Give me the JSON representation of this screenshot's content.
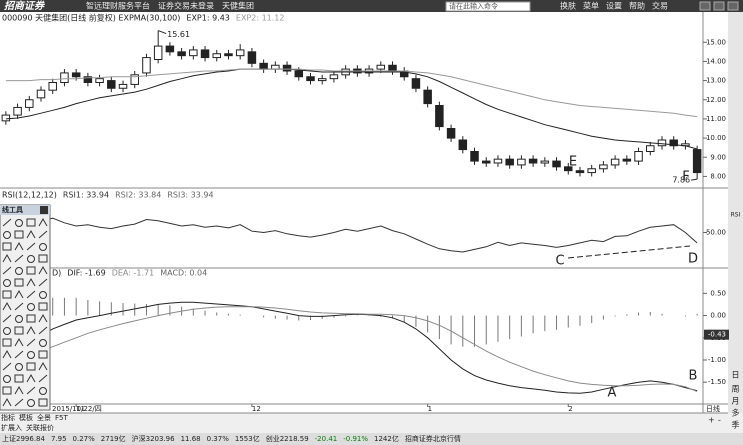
{
  "app": {
    "logo": "招商证券",
    "platform": "智远理财服务平台",
    "login": "证券交易未登录",
    "stock": "天健集团",
    "search": "请在此输入命令",
    "menu": [
      "换肤",
      "菜单",
      "设置",
      "帮助",
      "交易"
    ]
  },
  "chart_data": [
    {
      "type": "candlestick",
      "title": "000090 天健集团(日线 前复权) EXPMA(30,100)",
      "open": [
        10.9,
        11.2,
        11.6,
        12.1,
        12.5,
        12.9,
        13.4,
        13.2,
        12.9,
        13.0,
        12.6,
        12.8,
        13.4,
        14.1,
        14.8,
        14.5,
        14.3,
        14.6,
        14.2,
        14.4,
        14.3,
        14.5,
        13.9,
        13.6,
        13.8,
        13.5,
        13.2,
        13.0,
        13.1,
        13.3,
        13.6,
        13.4,
        13.6,
        13.8,
        13.5,
        13.1,
        12.5,
        11.7,
        10.5,
        9.9,
        9.3,
        8.8,
        8.7,
        8.9,
        8.6,
        8.9,
        8.7,
        8.8,
        8.5,
        8.3,
        8.2,
        8.4,
        8.6,
        8.9,
        8.8,
        9.3,
        9.6,
        9.9,
        9.6,
        9.4
      ],
      "high": [
        11.4,
        11.8,
        12.2,
        12.7,
        13.1,
        13.6,
        13.6,
        13.4,
        13.3,
        13.2,
        13.0,
        13.5,
        14.4,
        15.61,
        15.0,
        14.7,
        14.8,
        14.8,
        14.6,
        14.6,
        14.9,
        14.7,
        14.1,
        14.0,
        14.0,
        13.7,
        13.4,
        13.3,
        13.5,
        13.8,
        13.8,
        13.8,
        14.0,
        14.0,
        13.7,
        13.3,
        12.7,
        11.9,
        10.7,
        10.1,
        9.5,
        9.0,
        9.1,
        9.1,
        9.1,
        9.1,
        9.0,
        9.0,
        8.7,
        8.5,
        8.6,
        8.8,
        9.1,
        9.1,
        9.5,
        9.8,
        10.1,
        10.1,
        9.9,
        9.6
      ],
      "low": [
        10.7,
        11.0,
        11.4,
        11.9,
        12.3,
        12.7,
        13.0,
        12.7,
        12.7,
        12.4,
        12.4,
        12.6,
        13.2,
        13.9,
        14.3,
        14.1,
        14.1,
        14.0,
        14.0,
        14.1,
        14.1,
        13.7,
        13.4,
        13.4,
        13.3,
        13.0,
        12.8,
        12.8,
        12.9,
        13.1,
        13.2,
        13.2,
        13.4,
        13.3,
        13.0,
        12.4,
        11.6,
        10.4,
        9.8,
        9.2,
        8.6,
        8.5,
        8.5,
        8.4,
        8.4,
        8.5,
        8.5,
        8.3,
        8.1,
        8.0,
        8.0,
        8.2,
        8.4,
        8.6,
        8.6,
        9.1,
        9.4,
        9.4,
        9.4,
        7.86
      ],
      "close": [
        11.2,
        11.6,
        12.0,
        12.5,
        12.9,
        13.4,
        13.2,
        12.9,
        13.1,
        12.6,
        12.8,
        13.3,
        14.2,
        14.8,
        14.5,
        14.3,
        14.6,
        14.2,
        14.4,
        14.3,
        14.6,
        13.9,
        13.6,
        13.8,
        13.5,
        13.2,
        13.0,
        13.1,
        13.3,
        13.6,
        13.4,
        13.6,
        13.8,
        13.5,
        13.2,
        12.6,
        11.8,
        10.6,
        10.0,
        9.4,
        8.8,
        8.7,
        8.9,
        8.6,
        8.9,
        8.7,
        8.8,
        8.5,
        8.3,
        8.2,
        8.4,
        8.6,
        8.9,
        8.8,
        9.3,
        9.6,
        9.9,
        9.6,
        9.7,
        8.2
      ],
      "up_color": "#222222",
      "down_color": "#222222",
      "series": [
        {
          "name": "EXP1: 9.43",
          "color": "#222222",
          "values": [
            11.0,
            11.05,
            11.15,
            11.3,
            11.45,
            11.6,
            11.8,
            11.95,
            12.1,
            12.2,
            12.3,
            12.4,
            12.55,
            12.75,
            12.95,
            13.1,
            13.25,
            13.35,
            13.45,
            13.5,
            13.6,
            13.6,
            13.6,
            13.6,
            13.6,
            13.55,
            13.5,
            13.45,
            13.45,
            13.45,
            13.45,
            13.45,
            13.45,
            13.45,
            13.45,
            13.35,
            13.2,
            12.95,
            12.65,
            12.35,
            12.05,
            11.75,
            11.5,
            11.3,
            11.1,
            10.9,
            10.7,
            10.55,
            10.4,
            10.25,
            10.1,
            10.0,
            9.9,
            9.85,
            9.8,
            9.75,
            9.7,
            9.65,
            9.6,
            9.43
          ]
        },
        {
          "name": "EXP2: 11.12",
          "color": "#9a9a9a",
          "values": [
            13.0,
            13.0,
            13.0,
            13.05,
            13.05,
            13.1,
            13.1,
            13.15,
            13.15,
            13.2,
            13.2,
            13.2,
            13.25,
            13.3,
            13.35,
            13.4,
            13.45,
            13.5,
            13.5,
            13.55,
            13.6,
            13.6,
            13.6,
            13.6,
            13.6,
            13.6,
            13.55,
            13.55,
            13.5,
            13.5,
            13.5,
            13.5,
            13.5,
            13.5,
            13.5,
            13.45,
            13.4,
            13.3,
            13.2,
            13.05,
            12.9,
            12.75,
            12.6,
            12.45,
            12.3,
            12.15,
            12.0,
            11.9,
            11.8,
            11.7,
            11.65,
            11.6,
            11.55,
            11.5,
            11.45,
            11.4,
            11.35,
            11.3,
            11.2,
            11.12
          ]
        }
      ],
      "ylim": [
        7.5,
        15.9
      ],
      "yticks": [
        {
          "value": 8,
          "label": "8.00"
        },
        {
          "value": 9,
          "label": "9.00"
        },
        {
          "value": 10,
          "label": "10.00"
        },
        {
          "value": 11,
          "label": "11.00"
        },
        {
          "value": 12,
          "label": "12.00"
        },
        {
          "value": 13,
          "label": "13.00"
        },
        {
          "value": 14,
          "label": "14.00"
        },
        {
          "value": 15,
          "label": "15.00"
        }
      ]
    },
    {
      "type": "line",
      "title": "RSI(12,12,12)",
      "series": [
        {
          "name": "RSI1: 33.94",
          "color": "#333333",
          "values": [
            60,
            66,
            70,
            68,
            72,
            65,
            60,
            62,
            58,
            56,
            60,
            63,
            70,
            68,
            64,
            60,
            62,
            58,
            60,
            57,
            62,
            52,
            50,
            53,
            48,
            45,
            43,
            46,
            50,
            55,
            52,
            56,
            60,
            53,
            48,
            40,
            32,
            25,
            22,
            20,
            24,
            28,
            35,
            30,
            34,
            32,
            30,
            27,
            30,
            34,
            38,
            36,
            44,
            45,
            52,
            58,
            60,
            62,
            50,
            33.94
          ]
        }
      ],
      "other_legend": [
        "RSI2: 33.84",
        "RSI3: 33.94"
      ],
      "ylim": [
        0,
        100
      ],
      "yticks": [
        {
          "value": 50,
          "label": "50.00"
        }
      ]
    },
    {
      "type": "macd",
      "title": "D)",
      "categories": [
        "2015/10/22/四",
        null,
        null,
        null,
        null,
        null,
        "11",
        null,
        null,
        null,
        null,
        null,
        null,
        null,
        null,
        null,
        null,
        null,
        null,
        null,
        null,
        "12",
        null,
        null,
        null,
        null,
        null,
        null,
        null,
        null,
        null,
        null,
        null,
        null,
        null,
        null,
        "1",
        null,
        null,
        null,
        null,
        null,
        null,
        null,
        null,
        null,
        null,
        null,
        "2",
        null,
        null,
        null,
        null,
        null,
        null,
        null,
        null,
        null,
        null,
        null
      ],
      "series": [
        {
          "name": "DIF: -1.69",
          "color": "#222222",
          "values": [
            -0.9,
            -0.75,
            -0.6,
            -0.45,
            -0.3,
            -0.2,
            -0.1,
            -0.05,
            0.0,
            0.05,
            0.1,
            0.15,
            0.2,
            0.25,
            0.28,
            0.3,
            0.3,
            0.28,
            0.26,
            0.24,
            0.22,
            0.2,
            0.15,
            0.1,
            0.05,
            0.0,
            -0.02,
            -0.02,
            0.0,
            0.02,
            0.03,
            0.02,
            0.0,
            -0.05,
            -0.15,
            -0.3,
            -0.5,
            -0.75,
            -1.0,
            -1.2,
            -1.35,
            -1.45,
            -1.52,
            -1.58,
            -1.62,
            -1.65,
            -1.68,
            -1.72,
            -1.74,
            -1.75,
            -1.72,
            -1.66,
            -1.6,
            -1.55,
            -1.5,
            -1.47,
            -1.5,
            -1.55,
            -1.62,
            -1.69
          ]
        },
        {
          "name": "DEA: -1.71",
          "color": "#8a8a8a",
          "values": [
            -1.0,
            -0.95,
            -0.88,
            -0.8,
            -0.7,
            -0.6,
            -0.5,
            -0.4,
            -0.32,
            -0.25,
            -0.18,
            -0.12,
            -0.06,
            0.0,
            0.05,
            0.1,
            0.14,
            0.17,
            0.19,
            0.2,
            0.2,
            0.2,
            0.19,
            0.17,
            0.14,
            0.11,
            0.08,
            0.06,
            0.05,
            0.04,
            0.04,
            0.03,
            0.03,
            0.02,
            0.0,
            -0.05,
            -0.12,
            -0.22,
            -0.35,
            -0.5,
            -0.65,
            -0.8,
            -0.93,
            -1.05,
            -1.15,
            -1.25,
            -1.33,
            -1.4,
            -1.47,
            -1.52,
            -1.55,
            -1.57,
            -1.58,
            -1.58,
            -1.57,
            -1.55,
            -1.54,
            -1.55,
            -1.6,
            -1.71
          ]
        }
      ],
      "bars": {
        "name": "MACD: 0.04",
        "color": "#777777",
        "values": [
          0.1,
          0.2,
          0.28,
          0.35,
          0.4,
          0.4,
          0.4,
          0.35,
          0.32,
          0.3,
          0.28,
          0.27,
          0.26,
          0.25,
          0.23,
          0.2,
          0.16,
          0.11,
          0.07,
          0.04,
          0.02,
          0,
          -0.04,
          -0.07,
          -0.09,
          -0.11,
          -0.1,
          -0.08,
          -0.05,
          -0.02,
          -0.01,
          -0.01,
          -0.03,
          -0.07,
          -0.15,
          -0.25,
          -0.38,
          -0.53,
          -0.65,
          -0.7,
          -0.7,
          -0.65,
          -0.59,
          -0.53,
          -0.47,
          -0.4,
          -0.35,
          -0.32,
          -0.27,
          -0.23,
          -0.17,
          -0.09,
          -0.02,
          0.03,
          0.07,
          0.08,
          0.04,
          0,
          -0.02,
          0.04
        ]
      },
      "marker": {
        "value": -0.43,
        "label": "-0.43"
      },
      "ylim": [
        -1.9,
        0.8
      ],
      "yticks": [
        {
          "value": 0.5,
          "label": "0.50"
        },
        {
          "value": 0,
          "label": "0.00"
        },
        {
          "value": -0.5,
          "label": "-0.50"
        },
        {
          "value": -1,
          "label": "-1.00"
        },
        {
          "value": -1.5,
          "label": "-1.50"
        }
      ]
    }
  ],
  "annotations": [
    "A",
    "B",
    "C",
    "D",
    "E",
    "F"
  ],
  "tools": {
    "title": "线工具"
  },
  "side_toolbar": [
    "RSI",
    "日",
    "周",
    "月",
    "多",
    "季"
  ],
  "period": "日线",
  "zoom": [
    "+",
    "-"
  ],
  "tabs": [
    "指标",
    "模板",
    "全景",
    "F5T"
  ],
  "tabs2": [
    "扩展入",
    "关联报价"
  ],
  "status_bar": [
    "上证2996.84",
    "7.95",
    "0.27%",
    "2719亿",
    "沪深3203.96",
    "11.68",
    "0.37%",
    "1553亿",
    "创业2218.59",
    "-20.41",
    "-0.91%",
    "1242亿",
    "招商证券北京行情"
  ]
}
